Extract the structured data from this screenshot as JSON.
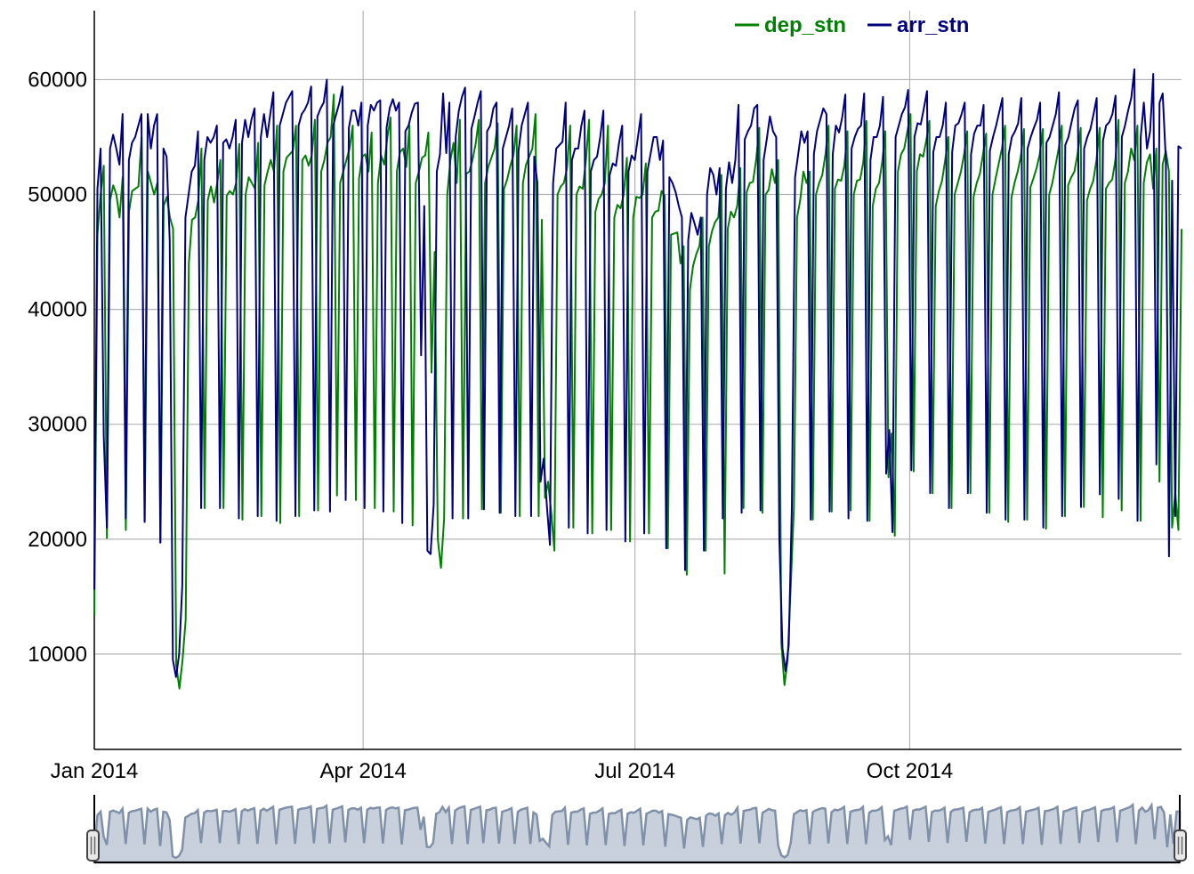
{
  "colors": {
    "dep_stn": "#008000",
    "arr_stn": "#000080",
    "grid": "#b4b4b4",
    "axis": "#000000",
    "range_fill": "#c8d0dc",
    "range_line": "#8090a8"
  },
  "chart_data": {
    "type": "line",
    "title": "",
    "xlabel": "",
    "ylabel": "",
    "x_start": "2014-01-01",
    "x_end": "2014-12-31",
    "ylim": [
      1700,
      66000
    ],
    "yticks": [
      10000,
      20000,
      30000,
      40000,
      50000,
      60000
    ],
    "xticks": [
      {
        "date": "2014-01-01",
        "label": "Jan 2014"
      },
      {
        "date": "2014-04-01",
        "label": "Apr 2014"
      },
      {
        "date": "2014-07-01",
        "label": "Jul 2014"
      },
      {
        "date": "2014-10-01",
        "label": "Oct 2014"
      }
    ],
    "grid": true,
    "legend_position": "top-right",
    "range_selector": true,
    "series": [
      {
        "name": "dep_stn",
        "color": "#008000",
        "values": [
          13400,
          46500,
          50000,
          52500,
          20100,
          49500,
          50800,
          50000,
          48000,
          51500,
          20800,
          48500,
          50300,
          50500,
          50700,
          55000,
          21500,
          52000,
          51000,
          50000,
          51000,
          19700,
          49000,
          49800,
          48000,
          47000,
          9000,
          7000,
          9500,
          13000,
          44000,
          47800,
          48000,
          49500,
          54000,
          22700,
          49500,
          50700,
          49300,
          51000,
          53000,
          22700,
          49900,
          50300,
          50000,
          51000,
          54400,
          21700,
          50000,
          51500,
          51000,
          50500,
          54500,
          22000,
          50800,
          52000,
          53000,
          52000,
          56000,
          21400,
          52000,
          53200,
          53500,
          53800,
          56000,
          22000,
          53000,
          53400,
          52500,
          53400,
          56500,
          22500,
          52000,
          53000,
          54500,
          55000,
          58700,
          23800,
          51000,
          52000,
          53000,
          54000,
          56000,
          23400,
          51400,
          53300,
          53500,
          52000,
          55400,
          22700,
          51000,
          53400,
          52600,
          55000,
          56700,
          22400,
          52000,
          53700,
          54000,
          52400,
          56000,
          21200,
          51000,
          52000,
          53200,
          53400,
          55400,
          34500,
          45000,
          20000,
          17500,
          21800,
          50000,
          53000,
          54500,
          51000,
          56500,
          21800,
          51800,
          52000,
          53000,
          54400,
          56500,
          22600,
          51000,
          52400,
          53200,
          54000,
          56200,
          22300,
          50500,
          51300,
          52500,
          53400,
          56000,
          22000,
          51000,
          52600,
          53300,
          54000,
          57000,
          22000,
          47800,
          23600,
          25000,
          22300,
          19000,
          50000,
          50700,
          51000,
          52300,
          56000,
          21000,
          50000,
          50700,
          50500,
          53000,
          56500,
          20500,
          48500,
          49600,
          50000,
          51000,
          56000,
          20800,
          48000,
          49100,
          48800,
          50000,
          53200,
          19800,
          48000,
          49800,
          49700,
          50000,
          52700,
          20500,
          48000,
          48500,
          48600,
          50300,
          49900,
          19200,
          46500,
          46600,
          46700,
          44000,
          45500,
          16900,
          41700,
          43800,
          44800,
          45500,
          48000,
          19000,
          45500,
          46800,
          47600,
          48000,
          51700,
          17000,
          47000,
          48500,
          48000,
          49000,
          52300,
          22700,
          50200,
          51000,
          51100,
          53000,
          55800,
          22300,
          50000,
          50400,
          52200,
          51000,
          53000,
          11000,
          7300,
          9500,
          16000,
          22800,
          48000,
          49500,
          52000,
          51000,
          52000,
          21700,
          50000,
          51000,
          51700,
          53500,
          56000,
          22400,
          50500,
          51300,
          51200,
          52500,
          55500,
          22500,
          50000,
          51200,
          51300,
          52800,
          56400,
          21600,
          49000,
          50500,
          51000,
          52800,
          55500,
          25400,
          29200,
          20300,
          52000,
          53500,
          54000,
          55500,
          57000,
          25900,
          52000,
          53500,
          53300,
          54700,
          56400,
          24000,
          49000,
          50300,
          51200,
          53000,
          55000,
          22700,
          50000,
          51000,
          52000,
          53500,
          55500,
          24000,
          49800,
          51000,
          51800,
          53500,
          55300,
          22300,
          50000,
          51400,
          52700,
          54000,
          56000,
          21500,
          49700,
          51000,
          52000,
          53300,
          55700,
          21700,
          50600,
          51400,
          52300,
          53500,
          55700,
          20900,
          50000,
          51000,
          52500,
          54000,
          56000,
          22000,
          50800,
          51500,
          52000,
          53500,
          55800,
          22800,
          49500,
          50500,
          51200,
          53000,
          55800,
          21900,
          50500,
          51000,
          51300,
          53000,
          56500,
          22500,
          51000,
          52000,
          54000,
          53000,
          56000,
          21600,
          51000,
          52800,
          53500,
          50500,
          54000,
          25000,
          52600,
          53800,
          52000,
          21000,
          24000,
          20800,
          47000
        ]
      },
      {
        "name": "arr_stn",
        "color": "#000080",
        "values": [
          15600,
          50500,
          54000,
          29000,
          21000,
          54000,
          55200,
          54000,
          52600,
          57000,
          21800,
          53000,
          54500,
          55000,
          56000,
          57000,
          21500,
          57000,
          54000,
          56000,
          57000,
          19700,
          54000,
          53300,
          46000,
          9500,
          8000,
          10000,
          16000,
          48000,
          50000,
          52000,
          52500,
          55500,
          22700,
          53000,
          55000,
          54500,
          55000,
          56000,
          22700,
          54500,
          54800,
          54000,
          55000,
          56500,
          21800,
          54500,
          56500,
          55000,
          56500,
          57500,
          22000,
          55000,
          57000,
          55000,
          57000,
          58900,
          21600,
          56000,
          57000,
          58000,
          58500,
          59000,
          22000,
          56000,
          57000,
          57400,
          58000,
          59400,
          22500,
          56800,
          57500,
          58000,
          60000,
          22400,
          56000,
          57000,
          58000,
          59400,
          23400,
          55800,
          57300,
          57300,
          56000,
          58000,
          22700,
          56000,
          57800,
          57300,
          58000,
          58200,
          22400,
          55800,
          57500,
          58300,
          57300,
          58000,
          21400,
          55500,
          56000,
          57100,
          57900,
          58000,
          36000,
          49000,
          19000,
          18700,
          23000,
          52000,
          53500,
          58800,
          53600,
          58000,
          21800,
          55000,
          57300,
          58500,
          59300,
          21800,
          55700,
          56800,
          58000,
          59000,
          22600,
          55500,
          56000,
          57500,
          58000,
          22300,
          54000,
          55000,
          56000,
          57500,
          22000,
          53800,
          56000,
          57000,
          58000,
          22000,
          53300,
          51000,
          25000,
          27000,
          23000,
          19500,
          51000,
          54000,
          54300,
          54600,
          58000,
          21000,
          53000,
          54000,
          54000,
          56000,
          57300,
          20500,
          52000,
          53000,
          53300,
          55000,
          57300,
          20800,
          51700,
          52700,
          52500,
          54500,
          56000,
          19800,
          52000,
          53400,
          53000,
          55000,
          57000,
          20500,
          52000,
          53500,
          55000,
          55000,
          53000,
          54700,
          19200,
          51500,
          51000,
          50200,
          49000,
          48000,
          17300,
          46000,
          48400,
          47500,
          46500,
          48000,
          19000,
          50000,
          52300,
          51700,
          50000,
          52300,
          21800,
          50500,
          52800,
          51000,
          53000,
          57800,
          22300,
          54800,
          55500,
          56000,
          57500,
          57800,
          22500,
          53000,
          54800,
          56800,
          55500,
          55000,
          20000,
          10500,
          8500,
          10800,
          23000,
          51500,
          53500,
          55500,
          54500,
          55500,
          21700,
          53500,
          55500,
          56500,
          57500,
          57000,
          22400,
          53500,
          56000,
          55400,
          56700,
          58700,
          21800,
          54000,
          55000,
          55700,
          56000,
          58800,
          21600,
          53000,
          55000,
          55000,
          56000,
          58500,
          25700,
          29500,
          20600,
          55000,
          56000,
          57000,
          57600,
          59100,
          26000,
          55000,
          56200,
          56100,
          57500,
          59000,
          24000,
          53700,
          55000,
          55000,
          56000,
          58000,
          22700,
          53700,
          56000,
          56200,
          57000,
          58000,
          24000,
          53500,
          55300,
          56000,
          56000,
          57800,
          22300,
          53800,
          55000,
          56000,
          57200,
          58400,
          21700,
          53500,
          55000,
          55500,
          56200,
          58400,
          21700,
          54000,
          55000,
          55800,
          56500,
          58000,
          21000,
          54500,
          55000,
          56000,
          57000,
          58900,
          22000,
          54300,
          55000,
          56300,
          57500,
          58200,
          22800,
          54000,
          55000,
          55700,
          57000,
          58400,
          23900,
          54700,
          56000,
          56300,
          57000,
          58600,
          23500,
          55000,
          56000,
          57300,
          58400,
          60900,
          21600,
          55000,
          58000,
          54000,
          55500,
          60500,
          26500,
          58000,
          58800,
          53000,
          18500,
          51200,
          22000,
          54200,
          54000
        ]
      }
    ]
  }
}
